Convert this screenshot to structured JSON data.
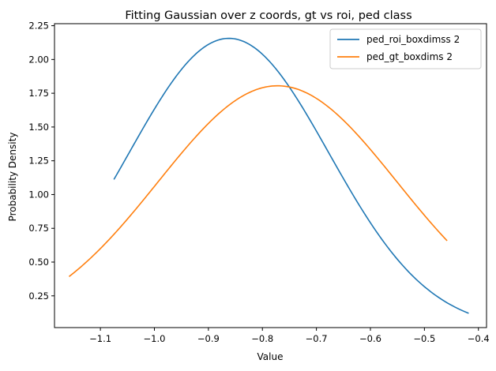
{
  "chart_data": {
    "type": "line",
    "title": "Fitting Gaussian over z coords, gt vs roi, ped class",
    "xlabel": "Value",
    "ylabel": "Probability Density",
    "xlim": [
      -1.185,
      -0.385
    ],
    "ylim": [
      0.015,
      2.265
    ],
    "xticks": [
      -1.1,
      -1.0,
      -0.9,
      -0.8,
      -0.7,
      -0.6,
      -0.5,
      -0.4
    ],
    "xtick_labels": [
      "−1.1",
      "−1.0",
      "−0.9",
      "−0.8",
      "−0.7",
      "−0.6",
      "−0.5",
      "−0.4"
    ],
    "yticks": [
      0.25,
      0.5,
      0.75,
      1.0,
      1.25,
      1.5,
      1.75,
      2.0,
      2.25
    ],
    "ytick_labels": [
      "0.25",
      "0.50",
      "0.75",
      "1.00",
      "1.25",
      "1.50",
      "1.75",
      "2.00",
      "2.25"
    ],
    "grid": false,
    "legend_position": "top-right",
    "series": [
      {
        "name": "ped_roi_boxdimss 2",
        "color": "#1f77b4",
        "gaussian": {
          "mean": -0.862,
          "std": 0.185
        },
        "x_range": [
          -1.075,
          -0.418
        ]
      },
      {
        "name": "ped_gt_boxdims 2",
        "color": "#ff7f0e",
        "gaussian": {
          "mean": -0.772,
          "std": 0.221
        },
        "x_range": [
          -1.158,
          -0.458
        ]
      }
    ]
  }
}
